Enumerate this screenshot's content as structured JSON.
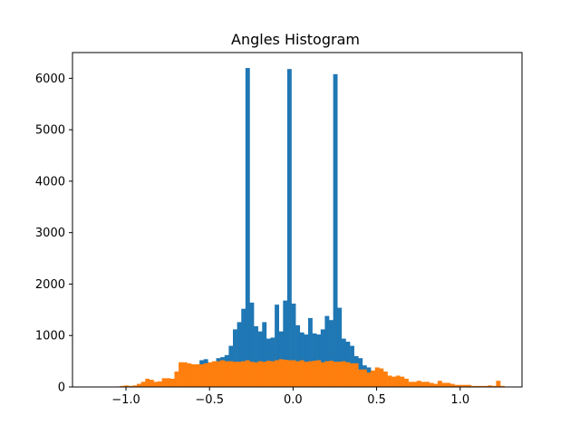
{
  "chart_data": {
    "type": "bar",
    "title": "Angles Histogram",
    "xlabel": "",
    "ylabel": "",
    "xlim": [
      -1.32,
      1.37
    ],
    "ylim": [
      0,
      6500
    ],
    "grid": false,
    "legend": "none",
    "bin_width": 0.0249,
    "xticks": [
      -1.0,
      -0.5,
      0.0,
      0.5,
      1.0
    ],
    "xtick_labels": [
      "−1.0",
      "−0.5",
      "0.0",
      "0.5",
      "1.0"
    ],
    "yticks": [
      0,
      1000,
      2000,
      3000,
      4000,
      5000,
      6000
    ],
    "ytick_labels": [
      "0",
      "1000",
      "2000",
      "3000",
      "4000",
      "5000",
      "6000"
    ],
    "series": [
      {
        "color": "#1f77b4",
        "bin_starts": [
          -0.56,
          -0.535,
          -0.51,
          -0.485,
          -0.46,
          -0.435,
          -0.41,
          -0.385,
          -0.36,
          -0.335,
          -0.31,
          -0.285,
          -0.26,
          -0.235,
          -0.21,
          -0.185,
          -0.16,
          -0.135,
          -0.11,
          -0.085,
          -0.06,
          -0.035,
          -0.01,
          0.015,
          0.04,
          0.065,
          0.09,
          0.115,
          0.14,
          0.165,
          0.19,
          0.215,
          0.24,
          0.265,
          0.29,
          0.315,
          0.34,
          0.365,
          0.39,
          0.415,
          0.44
        ],
        "values": [
          520,
          540,
          420,
          480,
          560,
          580,
          620,
          800,
          1120,
          1260,
          1520,
          6200,
          1640,
          1180,
          1080,
          1260,
          940,
          960,
          1600,
          1080,
          1680,
          6180,
          1620,
          1200,
          1060,
          1020,
          1340,
          1040,
          1020,
          1120,
          1380,
          1300,
          6080,
          1540,
          940,
          880,
          800,
          600,
          560,
          420,
          380
        ]
      },
      {
        "color": "#ff7f0e",
        "bin_starts": [
          -1.06,
          -1.035,
          -1.01,
          -0.985,
          -0.96,
          -0.935,
          -0.91,
          -0.885,
          -0.86,
          -0.835,
          -0.81,
          -0.785,
          -0.76,
          -0.735,
          -0.71,
          -0.685,
          -0.66,
          -0.635,
          -0.61,
          -0.585,
          -0.56,
          -0.535,
          -0.51,
          -0.485,
          -0.46,
          -0.435,
          -0.41,
          -0.385,
          -0.36,
          -0.335,
          -0.31,
          -0.285,
          -0.26,
          -0.235,
          -0.21,
          -0.185,
          -0.16,
          -0.135,
          -0.11,
          -0.085,
          -0.06,
          -0.035,
          -0.01,
          0.015,
          0.04,
          0.065,
          0.09,
          0.115,
          0.14,
          0.165,
          0.19,
          0.215,
          0.24,
          0.265,
          0.29,
          0.315,
          0.34,
          0.365,
          0.39,
          0.415,
          0.44,
          0.465,
          0.49,
          0.515,
          0.54,
          0.565,
          0.59,
          0.615,
          0.64,
          0.665,
          0.69,
          0.715,
          0.74,
          0.765,
          0.79,
          0.815,
          0.84,
          0.865,
          0.89,
          0.915,
          0.94,
          0.965,
          0.99,
          1.015,
          1.04,
          1.065,
          1.09,
          1.115,
          1.14,
          1.165,
          1.19,
          1.215,
          1.24
        ],
        "values": [
          10,
          20,
          30,
          20,
          30,
          60,
          100,
          160,
          140,
          100,
          110,
          170,
          170,
          160,
          300,
          480,
          480,
          460,
          440,
          440,
          440,
          460,
          480,
          500,
          500,
          520,
          500,
          500,
          490,
          490,
          500,
          520,
          490,
          480,
          500,
          490,
          510,
          500,
          520,
          540,
          530,
          520,
          520,
          500,
          520,
          490,
          500,
          510,
          520,
          480,
          500,
          510,
          490,
          490,
          500,
          480,
          460,
          460,
          340,
          340,
          280,
          320,
          380,
          360,
          300,
          220,
          200,
          220,
          200,
          160,
          100,
          100,
          120,
          100,
          100,
          80,
          60,
          120,
          80,
          80,
          60,
          40,
          40,
          40,
          40,
          20,
          20,
          20,
          20,
          30,
          20,
          120,
          20
        ]
      }
    ]
  }
}
